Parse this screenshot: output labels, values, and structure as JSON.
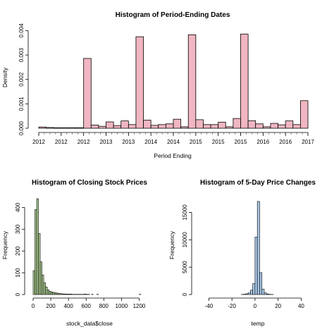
{
  "chart_data": [
    {
      "type": "bar",
      "title": "Histogram of Period-Ending Dates",
      "xlabel": "Period Ending",
      "ylabel": "Density",
      "fill_color": "#f0b6c2",
      "x_tick_labels": [
        "2012",
        "2012",
        "2012",
        "2013",
        "2013",
        "2014",
        "2014",
        "2015",
        "2015",
        "2015",
        "2016",
        "2016",
        "2017"
      ],
      "y_ticks": [
        0,
        0.001,
        0.002,
        0.003,
        0.004
      ],
      "y_tick_labels": [
        "0.000",
        "0.001",
        "0.002",
        "0.003",
        "0.004"
      ],
      "ylim": [
        0,
        0.0041
      ],
      "values": [
        5e-05,
        3e-05,
        2e-05,
        2e-05,
        2e-05,
        2e-05,
        0.00286,
        0.00013,
        8e-05,
        0.00026,
        0.00011,
        0.0003,
        0.00015,
        0.00375,
        0.00033,
        0.00012,
        0.00015,
        0.00018,
        0.00037,
        6e-05,
        0.00383,
        0.00035,
        0.00015,
        0.00015,
        0.00025,
        6e-05,
        0.0004,
        0.00386,
        0.00031,
        0.00018,
        6e-05,
        0.0002,
        0.00014,
        0.0003,
        0.00015,
        0.00113
      ]
    },
    {
      "type": "bar",
      "title": "Histogram of Closing Stock Prices",
      "xlabel": "stock_data$close",
      "ylabel": "Frequency",
      "fill_color": "#a9c98f",
      "bin_width": 20,
      "xlim": [
        0,
        1300
      ],
      "x_ticks": [
        0,
        200,
        400,
        600,
        800,
        1000,
        1200
      ],
      "ylim": [
        0,
        440
      ],
      "y_ticks": [
        0,
        100,
        200,
        300,
        400
      ],
      "values": [
        110,
        390,
        440,
        280,
        150,
        90,
        55,
        35,
        22,
        15,
        12,
        10,
        8,
        7,
        5,
        4,
        3,
        3,
        2,
        2,
        2,
        2,
        1,
        1,
        1,
        1,
        1,
        1,
        1,
        2,
        1,
        1,
        0,
        1,
        0,
        0,
        1,
        0,
        0,
        0,
        0,
        0,
        0,
        0,
        0,
        0,
        0,
        0,
        0,
        0,
        0,
        0,
        0,
        0,
        0,
        0,
        0,
        0,
        0,
        0,
        1
      ]
    },
    {
      "type": "bar",
      "title": "Histogram of 5-Day Price Changes",
      "xlabel": "temp",
      "ylabel": "Frequency",
      "fill_color": "#a8c8e8",
      "bin_width": 2,
      "bin_start": -12,
      "xlim": [
        -50,
        55
      ],
      "x_ticks": [
        -40,
        -20,
        0,
        20,
        40
      ],
      "ylim": [
        0,
        17500
      ],
      "y_ticks": [
        0,
        5000,
        10000,
        15000
      ],
      "values": [
        20,
        60,
        150,
        300,
        800,
        2000,
        10500,
        17000,
        4000,
        1000,
        300,
        100,
        40,
        20
      ]
    }
  ]
}
